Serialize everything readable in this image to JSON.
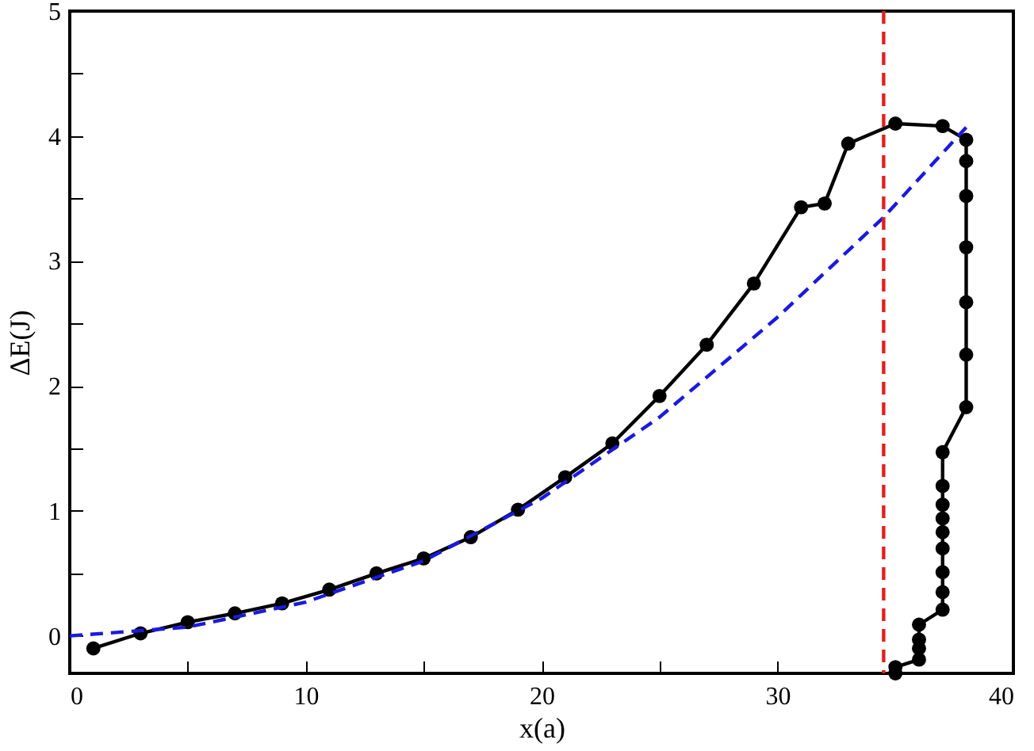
{
  "chart_data": {
    "type": "line",
    "xlabel": "x(a)",
    "ylabel": "ΔE(J)",
    "xlim": [
      0,
      40
    ],
    "ylim": [
      -0.3,
      5
    ],
    "xticks": [
      0,
      {
        "value": 5,
        "label": null
      },
      10,
      {
        "value": 15,
        "label": null
      },
      20,
      {
        "value": 25,
        "label": null
      },
      30,
      {
        "value": 35,
        "label": null
      },
      40
    ],
    "yticks": [
      0,
      {
        "value": 0.5,
        "label": null
      },
      1,
      {
        "value": 1.5,
        "label": null
      },
      2,
      {
        "value": 2.5,
        "label": null
      },
      3,
      {
        "value": 3.5,
        "label": null
      },
      4,
      {
        "value": 4.5,
        "label": null
      },
      5
    ],
    "grid": false,
    "series": [
      {
        "color": "#000000",
        "marker": "circle",
        "line_style": "solid",
        "x": [
          1,
          3,
          5,
          7,
          9,
          11,
          13,
          15,
          17,
          19,
          21,
          23,
          25,
          27,
          29,
          31,
          32,
          33,
          35,
          37,
          38,
          38,
          38,
          38,
          38,
          38,
          38,
          37,
          37,
          37,
          37,
          37,
          37,
          37,
          37,
          37,
          36,
          36,
          36,
          36,
          35,
          35
        ],
        "values": [
          -0.1,
          0.02,
          0.11,
          0.18,
          0.26,
          0.37,
          0.5,
          0.62,
          0.79,
          1.01,
          1.27,
          1.54,
          1.92,
          2.33,
          2.82,
          3.43,
          3.46,
          3.94,
          4.1,
          4.08,
          3.97,
          3.8,
          3.52,
          3.11,
          2.67,
          2.25,
          1.83,
          1.47,
          1.2,
          1.05,
          0.94,
          0.83,
          0.7,
          0.51,
          0.35,
          0.21,
          0.09,
          -0.03,
          -0.1,
          -0.19,
          -0.25,
          -0.3
        ]
      },
      {
        "color": "#1a1adc",
        "marker": "none",
        "line_style": "dashed",
        "x": [
          0,
          5,
          10,
          15,
          20,
          25,
          30,
          34.5,
          38
        ],
        "values": [
          0,
          0.07,
          0.27,
          0.6,
          1.1,
          1.75,
          2.55,
          3.35,
          4.07
        ]
      }
    ],
    "ref_lines": [
      {
        "axis": "x",
        "value": 34.5,
        "color": "#e02020",
        "line_style": "dashed"
      }
    ]
  }
}
